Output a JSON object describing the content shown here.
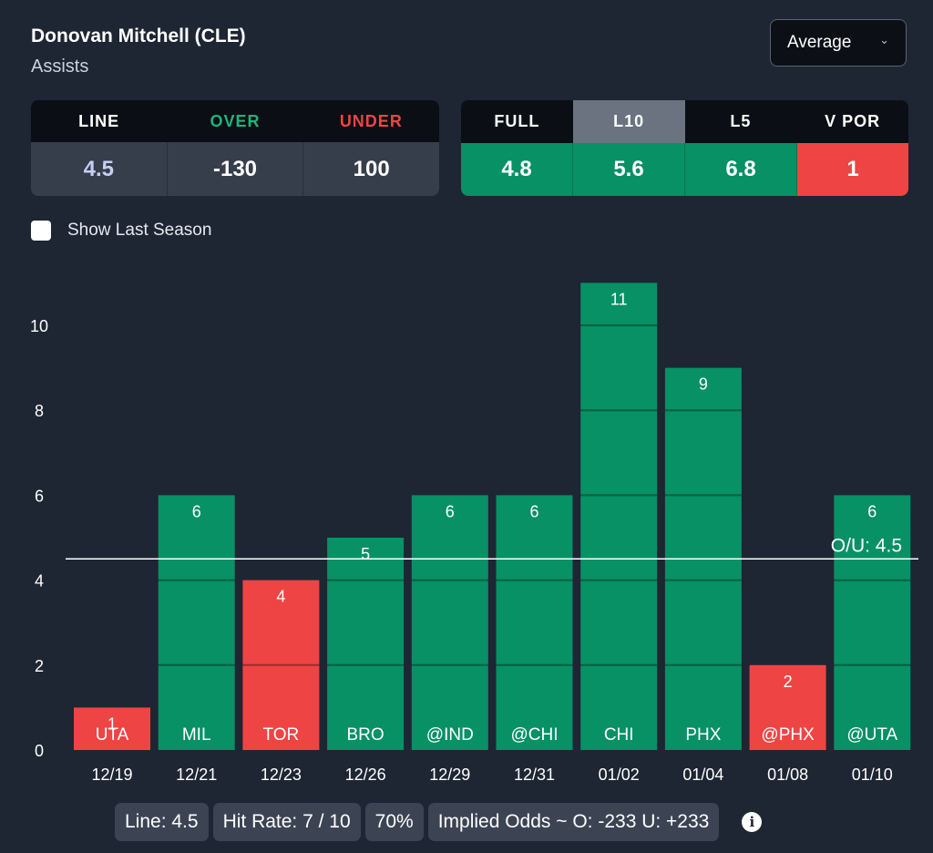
{
  "header": {
    "player": "Donovan Mitchell (CLE)",
    "stat": "Assists"
  },
  "dropdown": {
    "selected": "Average"
  },
  "odds": {
    "line_label": "LINE",
    "over_label": "OVER",
    "under_label": "UNDER",
    "line": "4.5",
    "over": "-130",
    "under": "100"
  },
  "averages": {
    "columns": [
      "FULL",
      "L10",
      "L5",
      "V POR"
    ],
    "values": [
      "4.8",
      "5.6",
      "6.8",
      "1"
    ],
    "active": "L10"
  },
  "options": {
    "show_last_season": "Show Last Season"
  },
  "chart_data": {
    "type": "bar",
    "categories": [
      "12/19",
      "12/21",
      "12/23",
      "12/26",
      "12/29",
      "12/31",
      "01/02",
      "01/04",
      "01/08",
      "01/10"
    ],
    "opponents": [
      "UTA",
      "MIL",
      "TOR",
      "BRO",
      "@IND",
      "@CHI",
      "CHI",
      "PHX",
      "@PHX",
      "@UTA"
    ],
    "values": [
      1,
      6,
      4,
      5,
      6,
      6,
      11,
      9,
      2,
      6
    ],
    "ylim": [
      0,
      11
    ],
    "yticks": [
      0,
      2,
      4,
      6,
      8,
      10
    ],
    "line": 4.5,
    "line_label": "O/U: 4.5",
    "colors": {
      "over": "#079165",
      "under": "#ef4444"
    }
  },
  "footer": {
    "line": "Line: 4.5",
    "hit_rate": "Hit Rate: 7 / 10",
    "percent": "70%",
    "implied": "Implied Odds ~ O: -233 U: +233"
  }
}
